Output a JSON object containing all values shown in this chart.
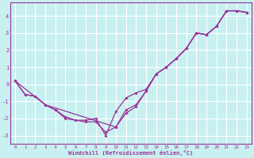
{
  "xlabel": "Windchill (Refroidissement éolien,°C)",
  "bg_color": "#c8f0f0",
  "line_color": "#993399",
  "grid_color": "#ffffff",
  "xlim": [
    -0.5,
    23.5
  ],
  "ylim": [
    -3.5,
    4.8
  ],
  "yticks": [
    -3,
    -2,
    -1,
    0,
    1,
    2,
    3,
    4
  ],
  "xticks": [
    0,
    1,
    2,
    3,
    4,
    5,
    6,
    7,
    8,
    9,
    10,
    11,
    12,
    13,
    14,
    15,
    16,
    17,
    18,
    19,
    20,
    21,
    22,
    23
  ],
  "line1_x": [
    0,
    1,
    2,
    3,
    4,
    5,
    6,
    7,
    8,
    9,
    10,
    11,
    12,
    13,
    14,
    15,
    16,
    17,
    18,
    19,
    20,
    21,
    22,
    23
  ],
  "line1_y": [
    0.2,
    -0.6,
    -0.7,
    -1.2,
    -1.5,
    -1.9,
    -2.1,
    -2.1,
    -2.0,
    -3.0,
    -1.6,
    -0.8,
    -0.5,
    -0.3,
    0.6,
    1.0,
    1.5,
    2.1,
    3.0,
    2.9,
    3.4,
    4.3,
    4.3,
    4.2
  ],
  "line2_x": [
    0,
    1,
    2,
    3,
    4,
    5,
    6,
    7,
    8,
    9,
    10,
    11,
    12,
    13,
    14,
    15,
    16,
    17,
    18,
    19,
    20,
    21,
    22,
    23
  ],
  "line2_y": [
    0.2,
    -0.6,
    -0.7,
    -1.2,
    -1.5,
    -2.0,
    -2.1,
    -2.2,
    -2.2,
    -2.8,
    -2.5,
    -1.7,
    -1.3,
    -0.4,
    0.6,
    1.0,
    1.5,
    2.1,
    3.0,
    2.9,
    3.4,
    4.3,
    4.3,
    4.2
  ],
  "line3_x": [
    0,
    3,
    10,
    11,
    12,
    13,
    14,
    15,
    16,
    17,
    18,
    19,
    20,
    21,
    22,
    23
  ],
  "line3_y": [
    0.2,
    -1.2,
    -2.5,
    -1.5,
    -1.2,
    -0.4,
    0.6,
    1.0,
    1.5,
    2.1,
    3.0,
    2.9,
    3.4,
    4.3,
    4.3,
    4.2
  ]
}
